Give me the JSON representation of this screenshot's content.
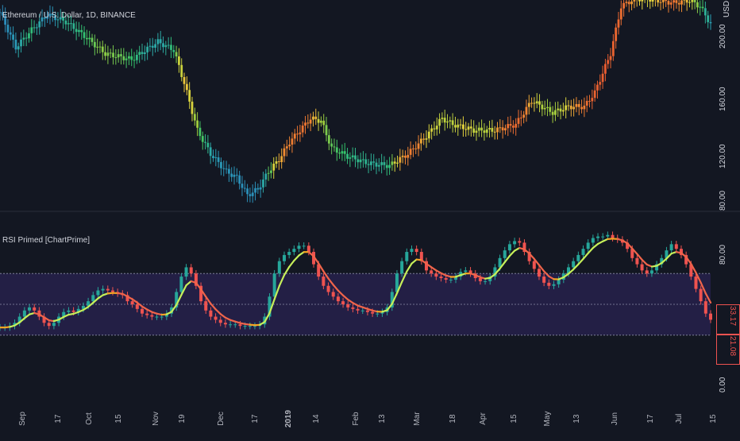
{
  "price_pane": {
    "symbol_title": "Ethereum / U.S. Dollar, 1D, BINANCE",
    "price_axis_labels": [
      "USD",
      "200.00",
      "160.00",
      "120.00",
      "80.00"
    ]
  },
  "indicator_pane": {
    "title": "RSI Primed [ChartPrime]",
    "axis_labels": [
      "80.00",
      "0.00"
    ],
    "current_value_tags": [
      "33.17",
      "21.08"
    ]
  },
  "time_axis": {
    "labels": [
      "Sep",
      "17",
      "Oct",
      "15",
      "Nov",
      "19",
      "Dec",
      "17",
      "2019",
      "14",
      "Feb",
      "13",
      "Mar",
      "18",
      "Apr",
      "15",
      "May",
      "13",
      "Jun",
      "17",
      "Jul",
      "15"
    ]
  },
  "colors": {
    "background": "#131722",
    "separator": "#2a2e39",
    "zone_fill": "#231f45",
    "zone_line": "#8c8fa6",
    "bull": "#26a69a",
    "bear": "#ef5350",
    "rsi_line_up": "#c6ef5a",
    "rsi_line_down": "#f0644a",
    "rsi_line_flat": "#f5a623",
    "tag_red": "#ef5350",
    "tag_orange": "#f0a04b"
  },
  "chart_data": [
    {
      "type": "candlestick",
      "title": "Ethereum / U.S. Dollar, 1D, BINANCE",
      "y_unit": "USD",
      "ylim": [
        78,
        245
      ],
      "y_ticks": [
        80,
        120,
        160,
        200
      ],
      "x_ticks": [
        "Sep",
        "17",
        "Oct",
        "15",
        "Nov",
        "19",
        "Dec",
        "17",
        "2019",
        "14",
        "Feb",
        "13",
        "Mar",
        "18",
        "Apr",
        "15",
        "May",
        "13",
        "Jun",
        "17",
        "Jul",
        "15"
      ],
      "approx_close_path": [
        [
          0,
          240
        ],
        [
          6,
          210
        ],
        [
          12,
          225
        ],
        [
          18,
          238
        ],
        [
          25,
          232
        ],
        [
          32,
          220
        ],
        [
          40,
          205
        ],
        [
          50,
          200
        ],
        [
          60,
          215
        ],
        [
          66,
          208
        ],
        [
          70,
          180
        ],
        [
          75,
          140
        ],
        [
          80,
          120
        ],
        [
          86,
          105
        ],
        [
          90,
          100
        ],
        [
          94,
          85
        ],
        [
          98,
          90
        ],
        [
          102,
          105
        ],
        [
          106,
          115
        ],
        [
          110,
          130
        ],
        [
          114,
          140
        ],
        [
          118,
          150
        ],
        [
          122,
          148
        ],
        [
          126,
          125
        ],
        [
          132,
          118
        ],
        [
          140,
          112
        ],
        [
          148,
          110
        ],
        [
          155,
          120
        ],
        [
          162,
          135
        ],
        [
          168,
          150
        ],
        [
          172,
          145
        ],
        [
          180,
          140
        ],
        [
          188,
          140
        ],
        [
          196,
          145
        ],
        [
          202,
          165
        ],
        [
          206,
          160
        ],
        [
          210,
          155
        ],
        [
          216,
          160
        ],
        [
          222,
          160
        ],
        [
          226,
          172
        ],
        [
          232,
          205
        ],
        [
          236,
          245
        ],
        [
          240,
          250
        ],
        [
          244,
          252
        ],
        [
          250,
          250
        ],
        [
          256,
          248
        ],
        [
          262,
          250
        ],
        [
          266,
          245
        ],
        [
          270,
          230
        ]
      ],
      "colored_by": "RSI"
    },
    {
      "type": "line",
      "title": "RSI Primed [ChartPrime]",
      "ylim": [
        0,
        100
      ],
      "y_ticks": [
        0,
        80
      ],
      "zone_levels": [
        30,
        50,
        70
      ],
      "series": [
        {
          "name": "RSI Primed [ChartPrime]",
          "values": [
            35,
            35,
            36,
            38,
            42,
            46,
            48,
            46,
            42,
            38,
            36,
            38,
            42,
            45,
            46,
            45,
            47,
            49,
            52,
            56,
            59,
            60,
            59,
            58,
            57,
            56,
            52,
            50,
            47,
            44,
            43,
            42,
            42,
            42,
            44,
            48,
            58,
            68,
            74,
            70,
            62,
            52,
            46,
            42,
            40,
            38,
            37,
            37,
            37,
            36,
            36,
            36,
            36,
            37,
            42,
            55,
            70,
            78,
            82,
            84,
            86,
            88,
            88,
            84,
            76,
            68,
            62,
            58,
            55,
            52,
            50,
            48,
            47,
            46,
            46,
            45,
            44,
            44,
            45,
            48,
            58,
            70,
            78,
            84,
            86,
            84,
            78,
            72,
            70,
            68,
            67,
            66,
            66,
            68,
            71,
            72,
            70,
            67,
            65,
            65,
            68,
            74,
            80,
            85,
            89,
            91,
            90,
            84,
            78,
            73,
            68,
            64,
            62,
            63,
            66,
            70,
            74,
            78,
            82,
            86,
            90,
            93,
            94,
            94,
            95,
            93,
            92,
            90,
            86,
            80,
            76,
            72,
            70,
            72,
            76,
            80,
            85,
            89,
            86,
            82,
            76,
            68,
            60,
            52,
            44,
            40
          ]
        }
      ],
      "current_values": [
        33.17,
        21.08
      ]
    }
  ]
}
